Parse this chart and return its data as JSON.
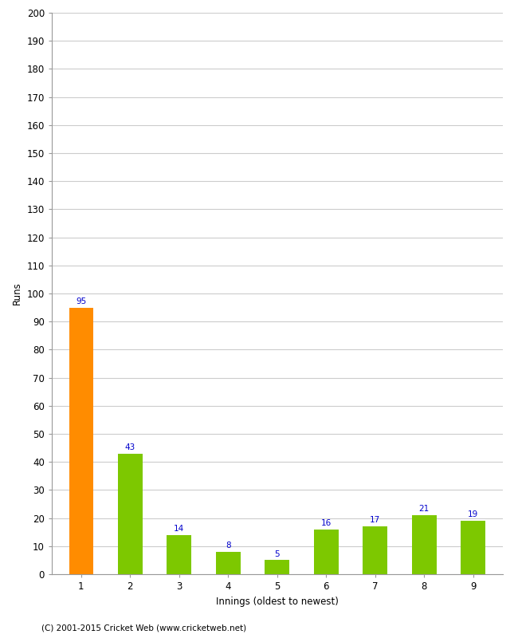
{
  "categories": [
    "1",
    "2",
    "3",
    "4",
    "5",
    "6",
    "7",
    "8",
    "9"
  ],
  "values": [
    95,
    43,
    14,
    8,
    5,
    16,
    17,
    21,
    19
  ],
  "bar_colors": [
    "#ff8c00",
    "#7dc800",
    "#7dc800",
    "#7dc800",
    "#7dc800",
    "#7dc800",
    "#7dc800",
    "#7dc800",
    "#7dc800"
  ],
  "xlabel": "Innings (oldest to newest)",
  "ylabel": "Runs",
  "ylim": [
    0,
    200
  ],
  "ytick_step": 10,
  "label_color": "#0000cc",
  "label_fontsize": 7.5,
  "axis_fontsize": 8.5,
  "tick_fontsize": 8.5,
  "footer": "(C) 2001-2015 Cricket Web (www.cricketweb.net)",
  "background_color": "#ffffff",
  "grid_color": "#cccccc",
  "bar_width": 0.5
}
